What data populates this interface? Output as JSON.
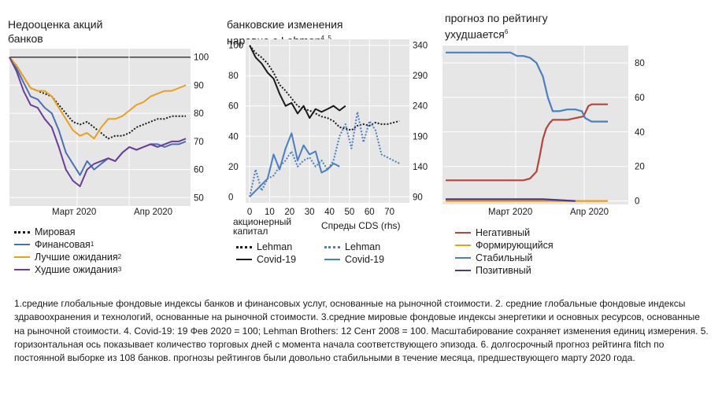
{
  "panel1": {
    "title": "Недооценка акций\nбанков",
    "legend": [
      {
        "label": "Мировая",
        "sup": "",
        "color": "#1a1a1a",
        "style": "dotted"
      },
      {
        "label": "Финансовая",
        "sup": "1",
        "color": "#4a6fb5",
        "style": "solid"
      },
      {
        "label": "Лучшие ожидания",
        "sup": "2",
        "color": "#e8a020",
        "style": "solid"
      },
      {
        "label": "Худшие ожидания",
        "sup": "3",
        "color": "#6a3d9a",
        "style": "solid"
      }
    ]
  },
  "panel2": {
    "title": "банковские изменения\nнаравне с Lehman",
    "title_sup": "4, 5",
    "xlabel_left": "акционерный\nкапитал",
    "xlabel_right": "Спреды CDS (rhs)",
    "legend": [
      {
        "label": "Lehman",
        "color": "#1a1a1a",
        "style": "dotted",
        "col": 0
      },
      {
        "label": "Lehman",
        "color": "#4a7fc1",
        "style": "dotted",
        "col": 1
      },
      {
        "label": "Covid-19",
        "color": "#1a1a1a",
        "style": "solid",
        "col": 0
      },
      {
        "label": "Covid-19",
        "color": "#4a7fc1",
        "style": "solid",
        "col": 1
      }
    ]
  },
  "panel3": {
    "title": "прогноз по рейтингу\nухудшается",
    "title_sup": "6",
    "legend": [
      {
        "label": "Негативный",
        "color": "#b5453a"
      },
      {
        "label": "Формирующийся",
        "color": "#e8a020"
      },
      {
        "label": "Стабильный",
        "color": "#4a7fc1"
      },
      {
        "label": "Позитивный",
        "color": "#4b3a8c"
      }
    ]
  },
  "notes": "1.средние глобальные фондовые индексы банков и финансовых услуг, основанные на рыночной стоимости. 2. средние глобальные фондовые индексы здравоохранения и технологий, основанные на рыночной стоимости. 3.средние мировые фондовые индексы энергетики и основных ресурсов, основанные на рыночной стоимости. 4. Covid-19: 19 Фев 2020 = 100; Lehman Brothers: 12 Сент 2008 = 100. Масштабирование сохраняет изменения единиц измерения. 5. горизонтальная ось показывает количество торговых дней с момента начала соответствующего эпизода. 6. долгосрочный прогноз рейтинга fitch по постоянной выборке из 108 банков. прогнозы рейтингов были довольно стабильными в течение месяца, предшествующего марту 2020 года.",
  "chart_data": [
    {
      "type": "line",
      "title": "Недооценка акций банков",
      "x_ticks": [
        "Март 2020",
        "Апр 2020"
      ],
      "x_range": [
        0,
        100
      ],
      "y_ticks": [
        50,
        60,
        70,
        80,
        90,
        100
      ],
      "ylim": [
        47,
        103
      ],
      "y_axis_side": "right",
      "reference_line": 100,
      "series": [
        {
          "name": "Мировая",
          "color": "#1a1a1a",
          "dash": "2,2",
          "x": [
            0,
            4,
            8,
            12,
            16,
            20,
            24,
            28,
            32,
            36,
            40,
            44,
            48,
            52,
            56,
            60,
            64,
            68,
            72,
            76,
            80,
            84,
            88,
            92,
            96,
            100
          ],
          "y": [
            100,
            97,
            93,
            89,
            88,
            87,
            86,
            83,
            80,
            77,
            76,
            77,
            75,
            73,
            71,
            72,
            72,
            73,
            75,
            76,
            77,
            78,
            78,
            79,
            79,
            79
          ]
        },
        {
          "name": "Финансовая",
          "color": "#4a6fb5",
          "dash": "",
          "x": [
            0,
            4,
            8,
            12,
            16,
            20,
            24,
            28,
            32,
            36,
            40,
            44,
            48,
            52,
            56,
            60,
            64,
            68,
            72,
            76,
            80,
            84,
            88,
            92,
            96,
            100
          ],
          "y": [
            100,
            96,
            91,
            86,
            85,
            82,
            80,
            74,
            66,
            62,
            58,
            63,
            60,
            62,
            64,
            63,
            66,
            68,
            67,
            68,
            69,
            69,
            68,
            69,
            69,
            70
          ]
        },
        {
          "name": "Лучшие ожидания",
          "color": "#e8a020",
          "dash": "",
          "x": [
            0,
            4,
            8,
            12,
            16,
            20,
            24,
            28,
            32,
            36,
            40,
            44,
            48,
            52,
            56,
            60,
            64,
            68,
            72,
            76,
            80,
            84,
            88,
            92,
            96,
            100
          ],
          "y": [
            100,
            97,
            93,
            89,
            88,
            88,
            86,
            82,
            78,
            74,
            72,
            73,
            71,
            75,
            78,
            78,
            79,
            81,
            83,
            84,
            86,
            87,
            88,
            88,
            89,
            90
          ]
        },
        {
          "name": "Худшие ожидания",
          "color": "#6a3d9a",
          "dash": "",
          "x": [
            0,
            4,
            8,
            12,
            16,
            20,
            24,
            28,
            32,
            36,
            40,
            44,
            48,
            52,
            56,
            60,
            64,
            68,
            72,
            76,
            80,
            84,
            88,
            92,
            96,
            100
          ],
          "y": [
            100,
            95,
            88,
            83,
            82,
            78,
            75,
            68,
            60,
            56,
            54,
            60,
            62,
            63,
            64,
            63,
            66,
            68,
            67,
            68,
            69,
            68,
            69,
            70,
            70,
            71
          ]
        }
      ]
    },
    {
      "type": "line",
      "title": "банковские изменения наравне с Lehman",
      "x_ticks": [
        0,
        10,
        20,
        30,
        40,
        50,
        60,
        70
      ],
      "xlim": [
        -2,
        80
      ],
      "y_ticks_left": [
        0,
        20,
        40,
        60,
        80,
        100
      ],
      "ylim_left": [
        -4,
        104
      ],
      "y_ticks_right": [
        90,
        140,
        190,
        240,
        290,
        340
      ],
      "ylim_right": [
        80,
        350
      ],
      "xlabel_left": "акционерный капитал",
      "xlabel_right": "Спреды CDS (rhs)",
      "series": [
        {
          "name": "Lehman",
          "axis": "left",
          "color": "#1a1a1a",
          "dash": "2,2",
          "x": [
            0,
            3,
            6,
            9,
            12,
            15,
            18,
            21,
            24,
            27,
            30,
            33,
            36,
            39,
            42,
            45,
            48,
            51,
            54,
            57,
            60,
            63,
            66,
            69,
            72,
            75
          ],
          "y": [
            100,
            95,
            92,
            88,
            82,
            74,
            70,
            65,
            60,
            58,
            57,
            55,
            53,
            52,
            50,
            46,
            45,
            44,
            47,
            48,
            47,
            49,
            48,
            48,
            49,
            50
          ]
        },
        {
          "name": "Covid-19",
          "axis": "left",
          "color": "#1a1a1a",
          "dash": "",
          "x": [
            0,
            3,
            6,
            9,
            12,
            15,
            18,
            21,
            24,
            27,
            30,
            33,
            36,
            39,
            42,
            45,
            48
          ],
          "y": [
            100,
            92,
            88,
            82,
            78,
            68,
            60,
            62,
            55,
            60,
            52,
            58,
            56,
            58,
            60,
            57,
            60
          ]
        },
        {
          "name": "Lehman",
          "axis": "right",
          "color": "#4a7fc1",
          "dash": "2,2",
          "x": [
            0,
            3,
            6,
            9,
            12,
            15,
            18,
            21,
            24,
            27,
            30,
            33,
            36,
            39,
            42,
            45,
            48,
            51,
            54,
            57,
            60,
            63,
            66,
            69,
            72,
            75
          ],
          "y": [
            90,
            135,
            100,
            120,
            125,
            140,
            150,
            165,
            140,
            150,
            155,
            140,
            150,
            135,
            150,
            190,
            210,
            170,
            230,
            180,
            215,
            200,
            160,
            155,
            150,
            145
          ]
        },
        {
          "name": "Covid-19",
          "axis": "right",
          "color": "#4a7fc1",
          "dash": "",
          "x": [
            0,
            3,
            6,
            9,
            12,
            15,
            18,
            21,
            24,
            27,
            30,
            33,
            36,
            39,
            42,
            45
          ],
          "y": [
            90,
            100,
            110,
            120,
            160,
            135,
            170,
            195,
            150,
            175,
            160,
            165,
            130,
            135,
            145,
            140
          ]
        }
      ]
    },
    {
      "type": "line",
      "title": "прогноз по рейтингу ухудшается",
      "x_ticks": [
        "Март 2020",
        "Апр 2020"
      ],
      "x_range": [
        0,
        100
      ],
      "y_ticks": [
        0,
        20,
        40,
        60,
        80
      ],
      "ylim": [
        -2,
        90
      ],
      "y_axis_side": "right",
      "series": [
        {
          "name": "Негативный",
          "color": "#b5453a",
          "x": [
            0,
            40,
            48,
            52,
            56,
            58,
            60,
            62,
            64,
            66,
            70,
            75,
            80,
            85,
            88,
            90,
            100
          ],
          "y": [
            12,
            12,
            12,
            13,
            17,
            26,
            36,
            42,
            45,
            47,
            47,
            47,
            48,
            49,
            55,
            56,
            56
          ]
        },
        {
          "name": "Формирующийся",
          "color": "#e8a020",
          "x": [
            0,
            40,
            60,
            80,
            100
          ],
          "y": [
            0,
            0,
            0,
            0,
            0
          ]
        },
        {
          "name": "Стабильный",
          "color": "#4a7fc1",
          "x": [
            0,
            40,
            44,
            48,
            52,
            56,
            60,
            63,
            66,
            70,
            75,
            80,
            84,
            86,
            88,
            90,
            94,
            100
          ],
          "y": [
            86,
            86,
            84,
            84,
            83,
            80,
            72,
            60,
            52,
            52,
            53,
            53,
            52,
            48,
            47,
            46,
            46,
            46
          ]
        },
        {
          "name": "Позитивный",
          "color": "#4b3a8c",
          "x": [
            0,
            40,
            60,
            80
          ],
          "y": [
            1,
            1,
            1,
            0
          ]
        }
      ]
    }
  ]
}
